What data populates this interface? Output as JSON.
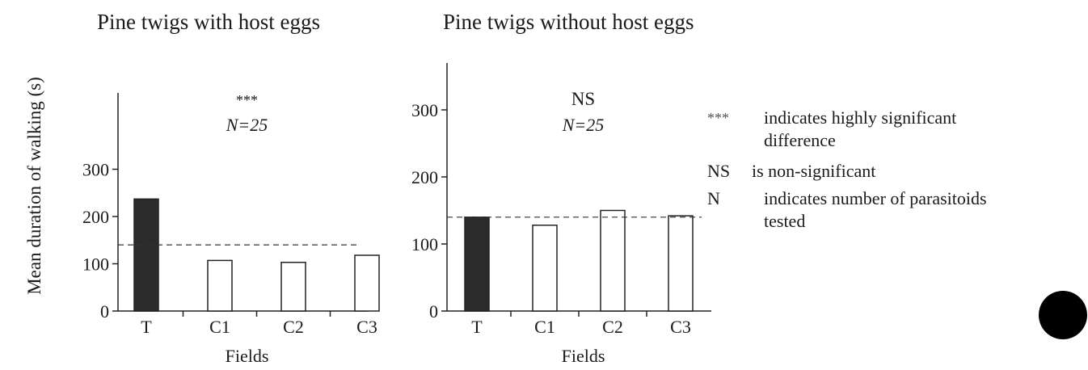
{
  "figure": {
    "ylabel": "Mean duration of walking (s)"
  },
  "chart_data": [
    {
      "type": "bar",
      "title": "Pine twigs with host eggs",
      "significance": "***",
      "n_label": "N=25",
      "categories": [
        "T",
        "C1",
        "C2",
        "C3"
      ],
      "values": [
        237,
        107,
        103,
        118
      ],
      "fills": [
        "#2b2b2b",
        "#ffffff",
        "#ffffff",
        "#ffffff"
      ],
      "reference_line": 140,
      "xlabel": "Fields",
      "ylabel": "Mean duration of walking (s)",
      "ylim": [
        0,
        360
      ],
      "yticks": [
        0,
        100,
        200,
        300
      ]
    },
    {
      "type": "bar",
      "title": "Pine twigs without host eggs",
      "significance": "NS",
      "n_label": "N=25",
      "categories": [
        "T",
        "C1",
        "C2",
        "C3"
      ],
      "values": [
        140,
        128,
        150,
        142
      ],
      "fills": [
        "#2b2b2b",
        "#ffffff",
        "#ffffff",
        "#ffffff"
      ],
      "reference_line": 140,
      "xlabel": "Fields",
      "ylabel": "",
      "ylim": [
        0,
        360
      ],
      "yticks": [
        0,
        100,
        200,
        300
      ]
    }
  ],
  "legend": [
    {
      "symbol": "***",
      "lines": [
        "indicates highly significant",
        "difference"
      ]
    },
    {
      "symbol": "NS",
      "lines": [
        "is non-significant"
      ]
    },
    {
      "symbol": "N",
      "lines": [
        "indicates number of parasitoids",
        "tested"
      ]
    }
  ]
}
